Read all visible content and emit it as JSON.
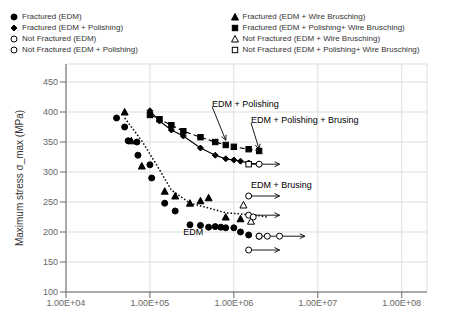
{
  "chart_data": {
    "type": "scatter",
    "log": "x",
    "grid": true,
    "legend": "top",
    "color": "#000000",
    "ylabel": "Maximum stress σ_max (MPa)",
    "xlim": [
      10000,
      200000000
    ],
    "ylim": [
      100,
      480
    ],
    "xticks": [
      {
        "value": 10000,
        "label": "1.00E+04"
      },
      {
        "value": 100000,
        "label": "1.00E+05"
      },
      {
        "value": 1000000,
        "label": "1.00E+06"
      },
      {
        "value": 10000000,
        "label": "1.00E+07"
      },
      {
        "value": 100000000,
        "label": "1.00E+08"
      }
    ],
    "yticks": [
      100,
      150,
      200,
      250,
      300,
      350,
      400,
      450
    ],
    "series": [
      {
        "name": "Fractured (EDM)",
        "marker": "circle",
        "x": [
          40000,
          50000,
          55000,
          70000,
          72000,
          100000,
          105000,
          150000,
          200000,
          300000,
          400000,
          500000,
          600000,
          700000,
          800000,
          1000000,
          1200000,
          1500000,
          2000000
        ],
        "y": [
          390,
          375,
          352,
          350,
          328,
          312,
          290,
          248,
          235,
          212,
          211,
          208,
          209,
          208,
          207,
          207,
          200,
          195,
          193
        ]
      },
      {
        "name": "Fractured (EDM + Wire Brusching)",
        "marker": "triangle",
        "x": [
          50000,
          60000,
          80000,
          150000,
          200000,
          300000,
          400000,
          500000,
          800000,
          1200000
        ],
        "y": [
          400,
          352,
          310,
          268,
          260,
          248,
          252,
          257,
          225,
          222
        ]
      },
      {
        "name": "Fractured (EDM + Polishing)",
        "marker": "diamond",
        "line_style": "solid",
        "x": [
          100000,
          130000,
          180000,
          250000,
          400000,
          600000,
          800000,
          1000000,
          1200000,
          1500000,
          2000000
        ],
        "y": [
          402,
          385,
          370,
          360,
          340,
          328,
          322,
          320,
          318,
          315,
          313
        ]
      },
      {
        "name": "Fractured (EDM + Polishing+ Wire Brusching)",
        "marker": "square",
        "line_style": "dashed",
        "x": [
          100000,
          130000,
          180000,
          250000,
          400000,
          600000,
          800000,
          1000000,
          1500000,
          2000000
        ],
        "y": [
          395,
          388,
          378,
          368,
          358,
          350,
          345,
          342,
          338,
          335
        ]
      },
      {
        "marker": "none",
        "line_style": "dotted",
        "x": [
          50000,
          80000,
          120000,
          180000,
          300000,
          500000,
          800000,
          1200000,
          1800000,
          2500000
        ],
        "y": [
          390,
          352,
          312,
          270,
          248,
          240,
          232,
          230,
          228,
          225
        ]
      },
      {
        "name": "Not Fractured (EDM)",
        "marker": "circle_open",
        "x": [
          2000000,
          2500000,
          3500000
        ],
        "y": [
          193,
          193,
          193
        ],
        "arrow_to": 7000000
      },
      {
        "name": "Not Fractured (EDM + Wire Brusching)",
        "marker": "triangle_open",
        "x": [
          1300000,
          1600000
        ],
        "y": [
          245,
          218
        ]
      },
      {
        "marker": "circle_open",
        "x": [
          1500000,
          1700000
        ],
        "y": [
          228,
          225
        ],
        "arrow_to": 3500000
      },
      {
        "marker": "circle_open",
        "x": [
          1500000
        ],
        "y": [
          260
        ],
        "arrow_to": 3500000
      },
      {
        "name": "Not Fractured (EDM + Polishing)",
        "marker": "circle_open",
        "x": [
          1500000
        ],
        "y": [
          170
        ],
        "arrow_to": 3500000
      },
      {
        "name": "Not Fractured (EDM + Polishing+ Wire Brusching)",
        "marker": "square_open",
        "x": [
          1500000
        ],
        "y": [
          313
        ],
        "arrow_to": 3500000
      },
      {
        "name": "Not Fractured (EDM + Polishing)",
        "marker": "circle_open",
        "x": [
          2000000
        ],
        "y": [
          313
        ]
      }
    ],
    "annotations": [
      {
        "text": "EDM + Polishing",
        "x": 550000,
        "y": 409,
        "arrow_x": 800000,
        "arrow_y": 353
      },
      {
        "text": "EDM + Polishing + Brusing",
        "x": 1600000,
        "y": 382,
        "arrow_x": 2000000,
        "arrow_y": 338
      },
      {
        "text": "EDM + Brusing",
        "x": 1600000,
        "y": 278
      },
      {
        "text": "EDM",
        "x": 250000,
        "y": 200
      }
    ]
  }
}
